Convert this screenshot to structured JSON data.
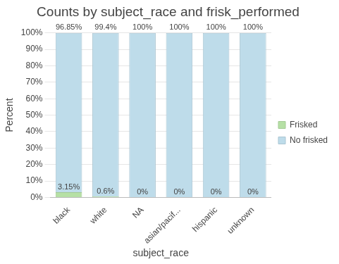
{
  "chart_data": {
    "type": "bar",
    "title": "Counts by subject_race and frisk_performed",
    "x_label": "subject_race",
    "y_label": "Percent",
    "categories": [
      "black",
      "white",
      "NA",
      "asian/pacif...",
      "hispanic",
      "unknown"
    ],
    "series": [
      {
        "name": "Frisked",
        "color": "#b6e0a5",
        "values": [
          3.15,
          0.6,
          0,
          0,
          0,
          0
        ],
        "value_labels": [
          "3.15%",
          "0.6%",
          "0%",
          "0%",
          "0%",
          "0%"
        ]
      },
      {
        "name": "No frisked",
        "color": "#bedcea",
        "values": [
          96.85,
          99.4,
          100,
          100,
          100,
          100
        ],
        "value_labels": [
          "96.85%",
          "99.4%",
          "100%",
          "100%",
          "100%",
          "100%"
        ]
      }
    ],
    "ylim": [
      0,
      100
    ],
    "yticks": [
      {
        "value": 0,
        "label": "0%"
      },
      {
        "value": 10,
        "label": "10%"
      },
      {
        "value": 20,
        "label": "20%"
      },
      {
        "value": 30,
        "label": "30%"
      },
      {
        "value": 40,
        "label": "40%"
      },
      {
        "value": 50,
        "label": "50%"
      },
      {
        "value": 60,
        "label": "60%"
      },
      {
        "value": 70,
        "label": "70%"
      },
      {
        "value": 80,
        "label": "80%"
      },
      {
        "value": 90,
        "label": "90%"
      },
      {
        "value": 100,
        "label": "100%"
      }
    ],
    "stacked": true,
    "data_labels": true,
    "grid": true,
    "legend": "right"
  }
}
